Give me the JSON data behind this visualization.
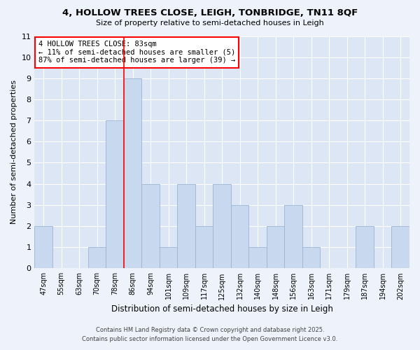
{
  "title1": "4, HOLLOW TREES CLOSE, LEIGH, TONBRIDGE, TN11 8QF",
  "title2": "Size of property relative to semi-detached houses in Leigh",
  "xlabel": "Distribution of semi-detached houses by size in Leigh",
  "ylabel": "Number of semi-detached properties",
  "categories": [
    "47sqm",
    "55sqm",
    "63sqm",
    "70sqm",
    "78sqm",
    "86sqm",
    "94sqm",
    "101sqm",
    "109sqm",
    "117sqm",
    "125sqm",
    "132sqm",
    "140sqm",
    "148sqm",
    "156sqm",
    "163sqm",
    "171sqm",
    "179sqm",
    "187sqm",
    "194sqm",
    "202sqm"
  ],
  "values": [
    2,
    0,
    0,
    1,
    7,
    9,
    4,
    1,
    4,
    2,
    4,
    3,
    1,
    2,
    3,
    1,
    0,
    0,
    2,
    0,
    2
  ],
  "bar_color": "#c8d8ee",
  "bar_edge_color": "#9ab4d4",
  "annotation_title": "4 HOLLOW TREES CLOSE: 83sqm",
  "annotation_line1": "← 11% of semi-detached houses are smaller (5)",
  "annotation_line2": "87% of semi-detached houses are larger (39) →",
  "ylim": [
    0,
    11
  ],
  "yticks": [
    0,
    1,
    2,
    3,
    4,
    5,
    6,
    7,
    8,
    9,
    10,
    11
  ],
  "background_color": "#eef2fb",
  "plot_background": "#dce6f5",
  "grid_color": "#ffffff",
  "red_line_x": 4.5,
  "footer1": "Contains HM Land Registry data © Crown copyright and database right 2025.",
  "footer2": "Contains public sector information licensed under the Open Government Licence v3.0."
}
